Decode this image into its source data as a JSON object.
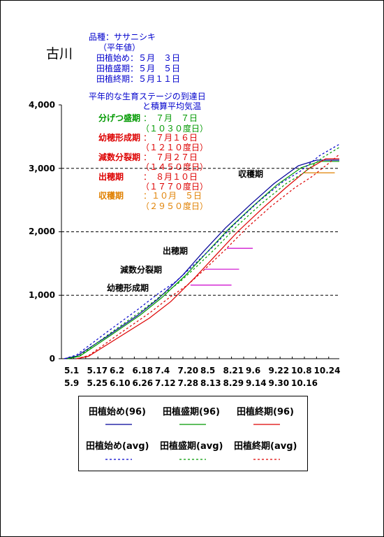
{
  "station": "古川",
  "variety": "品種：ササニシキ",
  "avg_note": "（平年値）",
  "planting_start": "田植始め：５月　３日",
  "planting_peak": "田植盛期：５月　５日",
  "planting_end": "田植終期：５月１１日",
  "subtitle_line1": "平年的な生育ステージの到達日",
  "subtitle_line2": "と積算平均気温",
  "stages": [
    {
      "name": "分げつ盛期",
      "date": "：　７月　７日",
      "days": "（１０３０度日）",
      "color": "#009900"
    },
    {
      "name": "幼穂形成期",
      "date": "：　７月１６日",
      "days": "（１２１０度日）",
      "color": "#dd0000"
    },
    {
      "name": "減数分裂期",
      "date": "：　７月２７日",
      "days": "（１４５０度日）",
      "color": "#dd0000"
    },
    {
      "name": "出穂期",
      "date": "：　８月１０日",
      "days": "（１７７０度日）",
      "color": "#dd0000"
    },
    {
      "name": "収穫期",
      "date": "：１０月　５日",
      "days": "（２９５０度日）",
      "color": "#e08000"
    }
  ],
  "chart_data": {
    "type": "line",
    "ylim": [
      0,
      4000
    ],
    "yticks": [
      "0",
      "1,000",
      "2,000",
      "3,000",
      "4,000"
    ],
    "xticks_top": [
      "5.1",
      "5.17",
      "6.2",
      "6.18",
      "7.4",
      "7.20",
      "8.5",
      "8.21",
      "9.6",
      "9.22",
      "10.8",
      "10.24"
    ],
    "xticks_bottom": [
      "5.9",
      "5.25",
      "6.10",
      "6.26",
      "7.12",
      "7.28",
      "8.13",
      "8.29",
      "9.14",
      "9.30",
      "10.16"
    ],
    "x_days_start": "5.1",
    "x_days_end": "10.31",
    "series": [
      {
        "name": "田植始め(96)",
        "color": "#000099",
        "dash": false,
        "start_day": 2,
        "points": [
          [
            2,
            0
          ],
          [
            10,
            40
          ],
          [
            30,
            350
          ],
          [
            50,
            680
          ],
          [
            64,
            950
          ],
          [
            80,
            1320
          ],
          [
            94,
            1700
          ],
          [
            108,
            2060
          ],
          [
            124,
            2420
          ],
          [
            140,
            2760
          ],
          [
            156,
            3040
          ],
          [
            168,
            3130
          ],
          [
            183,
            3130
          ]
        ]
      },
      {
        "name": "田植盛期(96)",
        "color": "#009900",
        "dash": false,
        "start_day": 4,
        "points": [
          [
            4,
            0
          ],
          [
            12,
            40
          ],
          [
            32,
            360
          ],
          [
            52,
            690
          ],
          [
            66,
            960
          ],
          [
            82,
            1320
          ],
          [
            96,
            1680
          ],
          [
            110,
            2040
          ],
          [
            126,
            2400
          ],
          [
            142,
            2740
          ],
          [
            158,
            3010
          ],
          [
            170,
            3110
          ],
          [
            183,
            3110
          ]
        ]
      },
      {
        "name": "田植終期(96)",
        "color": "#dd0000",
        "dash": false,
        "start_day": 10,
        "points": [
          [
            10,
            0
          ],
          [
            18,
            40
          ],
          [
            38,
            340
          ],
          [
            58,
            640
          ],
          [
            72,
            900
          ],
          [
            88,
            1280
          ],
          [
            102,
            1640
          ],
          [
            116,
            2000
          ],
          [
            132,
            2360
          ],
          [
            148,
            2700
          ],
          [
            162,
            2980
          ],
          [
            174,
            3150
          ],
          [
            183,
            3150
          ]
        ]
      },
      {
        "name": "田植始め(avg)",
        "color": "#0000cc",
        "dash": true,
        "start_day": 2,
        "points": [
          [
            2,
            0
          ],
          [
            10,
            60
          ],
          [
            30,
            420
          ],
          [
            50,
            770
          ],
          [
            64,
            1030
          ],
          [
            75,
            1210
          ],
          [
            86,
            1450
          ],
          [
            100,
            1770
          ],
          [
            114,
            2120
          ],
          [
            130,
            2480
          ],
          [
            146,
            2790
          ],
          [
            157,
            2950
          ],
          [
            170,
            3200
          ],
          [
            183,
            3380
          ]
        ]
      },
      {
        "name": "田植盛期(avg)",
        "color": "#009900",
        "dash": true,
        "start_day": 4,
        "points": [
          [
            4,
            0
          ],
          [
            12,
            50
          ],
          [
            32,
            400
          ],
          [
            52,
            740
          ],
          [
            66,
            1000
          ],
          [
            77,
            1190
          ],
          [
            88,
            1430
          ],
          [
            102,
            1750
          ],
          [
            116,
            2100
          ],
          [
            132,
            2450
          ],
          [
            148,
            2760
          ],
          [
            159,
            2920
          ],
          [
            172,
            3170
          ],
          [
            183,
            3330
          ]
        ]
      },
      {
        "name": "田植終期(avg)",
        "color": "#dd0000",
        "dash": true,
        "start_day": 10,
        "points": [
          [
            10,
            0
          ],
          [
            18,
            50
          ],
          [
            38,
            390
          ],
          [
            58,
            720
          ],
          [
            72,
            980
          ],
          [
            83,
            1160
          ],
          [
            94,
            1400
          ],
          [
            108,
            1720
          ],
          [
            122,
            2060
          ],
          [
            138,
            2400
          ],
          [
            154,
            2700
          ],
          [
            165,
            2870
          ],
          [
            176,
            3080
          ],
          [
            183,
            3220
          ]
        ]
      }
    ],
    "markers": [
      {
        "label": "幼穂形成期",
        "y": 1160,
        "x_from": 85,
        "x_to": 112,
        "color": "#cc00cc"
      },
      {
        "label": "減数分裂期",
        "y": 1410,
        "x_from": 94,
        "x_to": 117,
        "color": "#cc00cc"
      },
      {
        "label": "出穂期",
        "y": 1740,
        "x_from": 109,
        "x_to": 126,
        "color": "#cc00cc"
      },
      {
        "label": "収穫期",
        "y": 2930,
        "x_from": 160,
        "x_to": 180,
        "color": "#e08000"
      }
    ]
  },
  "legend": {
    "items": [
      "田植始め(96)",
      "田植盛期(96)",
      "田植終期(96)",
      "田植始め(avg)",
      "田植盛期(avg)",
      "田植終期(avg)"
    ]
  }
}
